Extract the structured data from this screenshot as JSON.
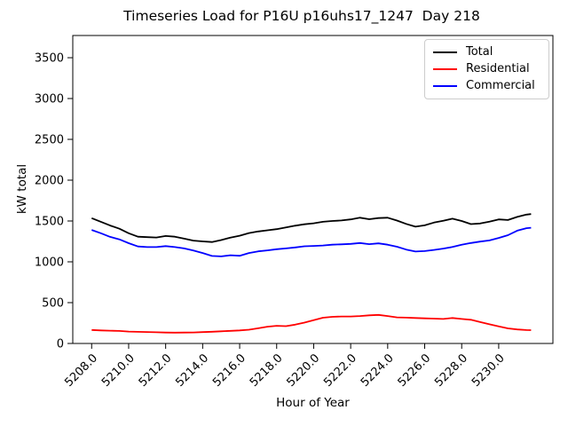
{
  "chart_data": {
    "type": "line",
    "title": "Timeseries Load for P16U p16uhs17_1247  Day 218",
    "xlabel": "Hour of Year",
    "ylabel": "kW total",
    "xlim": [
      5206.98,
      5232.93
    ],
    "ylim": [
      0,
      3772
    ],
    "grid": false,
    "legend_position": "upper right",
    "xticks": [
      5208,
      5210,
      5212,
      5214,
      5216,
      5218,
      5220,
      5222,
      5224,
      5226,
      5228,
      5230
    ],
    "xtick_labels": [
      "5208.0",
      "5210.0",
      "5212.0",
      "5214.0",
      "5216.0",
      "5218.0",
      "5220.0",
      "5222.0",
      "5224.0",
      "5226.0",
      "5228.0",
      "5230.0"
    ],
    "yticks": [
      0,
      500,
      1000,
      1500,
      2000,
      2500,
      3000,
      3500
    ],
    "ytick_labels": [
      "0",
      "500",
      "1000",
      "1500",
      "2000",
      "2500",
      "3000",
      "3500"
    ],
    "x": [
      5208,
      5208.5,
      5209,
      5209.5,
      5210,
      5210.5,
      5211,
      5211.5,
      5212,
      5212.5,
      5213,
      5213.5,
      5214,
      5214.5,
      5215,
      5215.5,
      5216,
      5216.5,
      5217,
      5217.5,
      5218,
      5218.5,
      5219,
      5219.5,
      5220,
      5220.5,
      5221,
      5221.5,
      5222,
      5222.5,
      5223,
      5223.5,
      5224,
      5224.5,
      5225,
      5225.5,
      5226,
      5226.5,
      5227,
      5227.5,
      5228,
      5228.5,
      5229,
      5229.5,
      5230,
      5230.5,
      5231,
      5231.5,
      5231.75
    ],
    "series": [
      {
        "name": "Total",
        "color": "#000000",
        "values": [
          1535,
          1490,
          1445,
          1405,
          1350,
          1308,
          1302,
          1298,
          1316,
          1308,
          1284,
          1260,
          1250,
          1242,
          1266,
          1297,
          1320,
          1352,
          1372,
          1386,
          1400,
          1422,
          1442,
          1460,
          1472,
          1490,
          1500,
          1507,
          1520,
          1540,
          1522,
          1536,
          1540,
          1505,
          1464,
          1430,
          1447,
          1480,
          1502,
          1528,
          1500,
          1462,
          1470,
          1492,
          1520,
          1512,
          1550,
          1578,
          1585
        ]
      },
      {
        "name": "Residential",
        "color": "#ff0000",
        "values": [
          165,
          160,
          157,
          153,
          146,
          142,
          140,
          137,
          134,
          133,
          134,
          135,
          139,
          144,
          149,
          154,
          160,
          168,
          186,
          205,
          216,
          212,
          230,
          255,
          285,
          315,
          326,
          330,
          330,
          336,
          345,
          350,
          336,
          320,
          316,
          312,
          308,
          304,
          300,
          312,
          300,
          290,
          262,
          235,
          210,
          185,
          172,
          164,
          163
        ]
      },
      {
        "name": "Commercial",
        "color": "#0000ff",
        "values": [
          1390,
          1350,
          1305,
          1275,
          1228,
          1188,
          1180,
          1180,
          1192,
          1180,
          1164,
          1138,
          1108,
          1072,
          1066,
          1080,
          1074,
          1108,
          1128,
          1140,
          1154,
          1164,
          1176,
          1190,
          1195,
          1200,
          1210,
          1214,
          1220,
          1230,
          1216,
          1226,
          1210,
          1185,
          1150,
          1126,
          1132,
          1146,
          1162,
          1182,
          1210,
          1230,
          1248,
          1262,
          1292,
          1326,
          1382,
          1412,
          1418
        ]
      }
    ]
  }
}
